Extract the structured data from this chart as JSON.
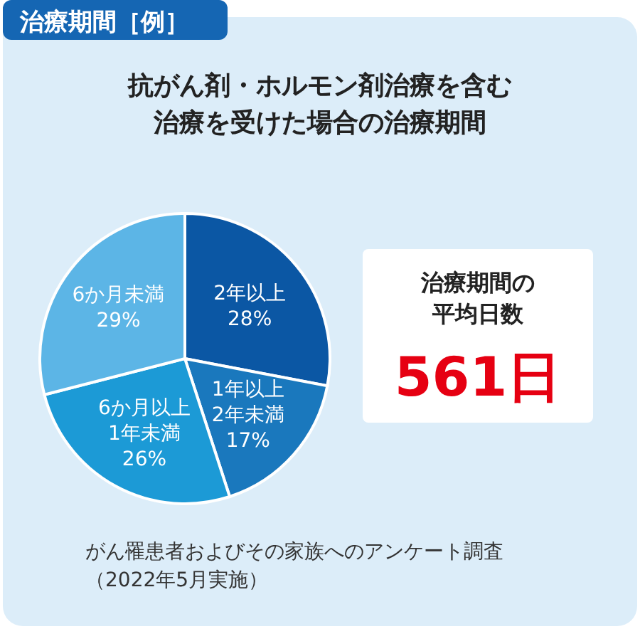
{
  "chart_data": {
    "type": "pie",
    "title": "治療期間［例］",
    "subtitle": "抗がん剤・ホルモン剤治療を含む治療を受けた場合の治療期間",
    "categories": [
      "2年以上",
      "1年以上\n2年未満",
      "6か月以上\n1年未満",
      "6か月未満"
    ],
    "values": [
      28,
      17,
      26,
      29
    ],
    "value_labels": [
      "28%",
      "17%",
      "26%",
      "29%"
    ],
    "colors": [
      "#0b57a4",
      "#1a78bd",
      "#1c9ad6",
      "#5cb5e6"
    ],
    "annotations": [
      "治療期間の平均日数",
      "561日",
      "がん罹患者およびその家族へのアンケート調査（2022年5月実施）"
    ]
  }
}
